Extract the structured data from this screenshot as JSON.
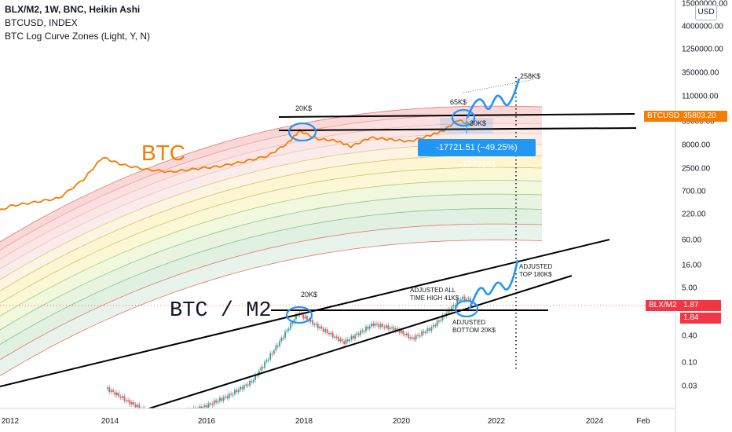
{
  "legend": {
    "main": "BLX/M2, 1W, BNC, Heikin Ashi",
    "second": "BTCUSD, INDEX",
    "third": "BTC Log Curve Zones (Light, Y, N)"
  },
  "currency_button": "USD",
  "price_badges": {
    "btcusd_label": "BTCUSD",
    "btcusd_value": "35803.20",
    "blxm2_label": "BLX/M2",
    "blxm2_value": "1.87",
    "blxm2_value2": "1.84"
  },
  "measure_label": "-17721.51 (−49.25%) −1772151",
  "colors": {
    "btc_line": "#f57c00",
    "drawing_blue": "#2196f3",
    "candle_up": "#26a69a",
    "candle_down": "#ef5350",
    "badge_orange": "#f57c00",
    "badge_red": "#f23645",
    "badge_blue": "#2196f3"
  },
  "chart_data": {
    "type": "line",
    "price_axis_ticks": [
      "15000000.00",
      "4000000.00",
      "1250000.00",
      "350000.00",
      "110000.00",
      "35000.00",
      "8000.00",
      "2500.00",
      "700.00",
      "220.00",
      "60.00",
      "16.00",
      "5.00",
      "0.40",
      "0.10",
      "0.03"
    ],
    "time_axis_ticks": [
      "2012",
      "2014",
      "2016",
      "2018",
      "2020",
      "2022",
      "2024",
      "Feb"
    ],
    "annotations": {
      "btc_title": "BTC",
      "ratio_title": "BTC / M2",
      "top_20k": "20K$",
      "top_65k": "65K$",
      "bottom_30k": "30K$",
      "target_258k": "258K$",
      "ratio_20k": "20K$",
      "ath_line1": "ADJUSTED ALL",
      "ath_line2": "TIME HIGH 41K$",
      "bottom_line1": "ADJUSTED",
      "bottom_line2": "BOTTOM 20K$",
      "top_line1": "ADJUSTED",
      "top_line2": "TOP 180K$"
    },
    "series": [
      {
        "x": [
          "2011.5",
          "2012.0",
          "2012.5",
          "2013.0",
          "2013.5",
          "2013.9",
          "2014.3",
          "2014.8",
          "2015.3",
          "2015.8",
          "2016.3",
          "2016.8",
          "2017.3",
          "2017.7",
          "2017.95",
          "2018.3",
          "2018.7",
          "2019.0",
          "2019.4",
          "2019.8",
          "2020.2",
          "2020.6",
          "2020.9",
          "2021.2",
          "2021.5"
        ],
        "values": [
          2,
          6,
          9,
          14,
          100,
          1100,
          500,
          300,
          230,
          320,
          420,
          700,
          1300,
          5000,
          19000,
          8000,
          6500,
          3500,
          9000,
          7500,
          6000,
          11000,
          19000,
          60000,
          35000
        ]
      },
      {
        "x": [
          "2014.0",
          "2014.5",
          "2015.0",
          "2015.5",
          "2016.0",
          "2016.5",
          "2017.0",
          "2017.5",
          "2017.95",
          "2018.4",
          "2018.9",
          "2019.5",
          "2020.0",
          "2020.3",
          "2020.7",
          "2021.0",
          "2021.3",
          "2021.5"
        ],
        "values": [
          0.03,
          0.015,
          0.008,
          0.009,
          0.012,
          0.02,
          0.04,
          0.2,
          1.0,
          0.5,
          0.25,
          0.6,
          0.45,
          0.3,
          0.5,
          1.0,
          2.0,
          1.85
        ]
      }
    ]
  }
}
